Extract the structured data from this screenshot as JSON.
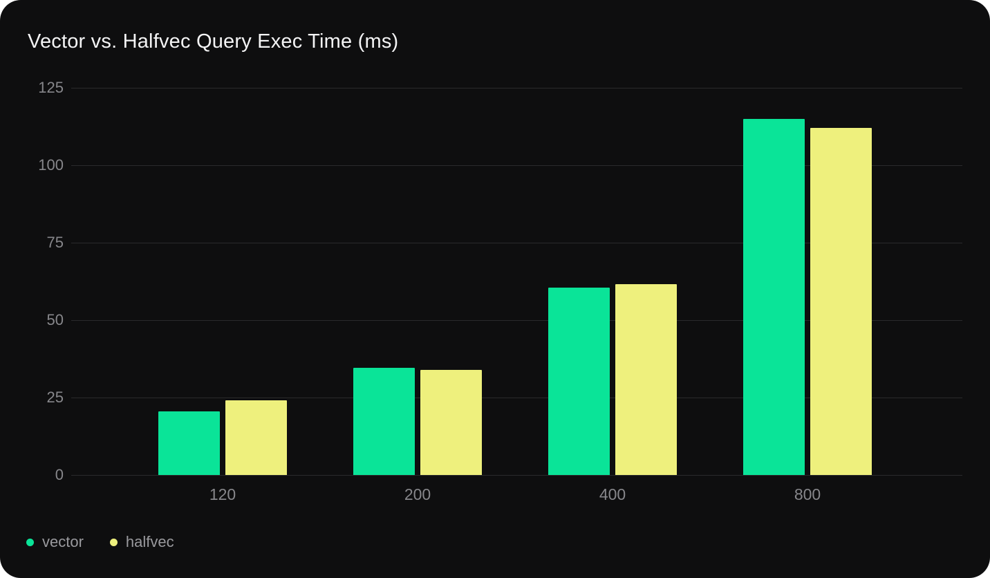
{
  "title": "Vector vs. Halfvec Query Exec Time (ms)",
  "colors": {
    "page_background": "#ffffff",
    "card_background": "#0e0e0f",
    "gridline": "#2a2a2c",
    "axis_label": "#87878b",
    "legend_label": "#9a9a9e",
    "title_text": "#f4f4f5",
    "vector": "#0ae498",
    "halfvec": "#eef07d"
  },
  "legend": {
    "items": [
      {
        "label": "vector",
        "color": "#0ae498"
      },
      {
        "label": "halfvec",
        "color": "#eef07d"
      }
    ]
  },
  "chart_data": {
    "type": "bar",
    "title": "Vector vs. Halfvec Query Exec Time (ms)",
    "categories": [
      "120",
      "200",
      "400",
      "800"
    ],
    "series": [
      {
        "name": "vector",
        "color": "#0ae498",
        "values": [
          20.5,
          34.5,
          60.5,
          115
        ]
      },
      {
        "name": "halfvec",
        "color": "#eef07d",
        "values": [
          24,
          34,
          61.5,
          112
        ]
      }
    ],
    "xlabel": "",
    "ylabel": "",
    "ylim": [
      0,
      125
    ],
    "yticks": [
      0,
      25,
      50,
      75,
      100,
      125
    ],
    "grid": true,
    "grouped": true,
    "legend_position": "bottom-left"
  }
}
